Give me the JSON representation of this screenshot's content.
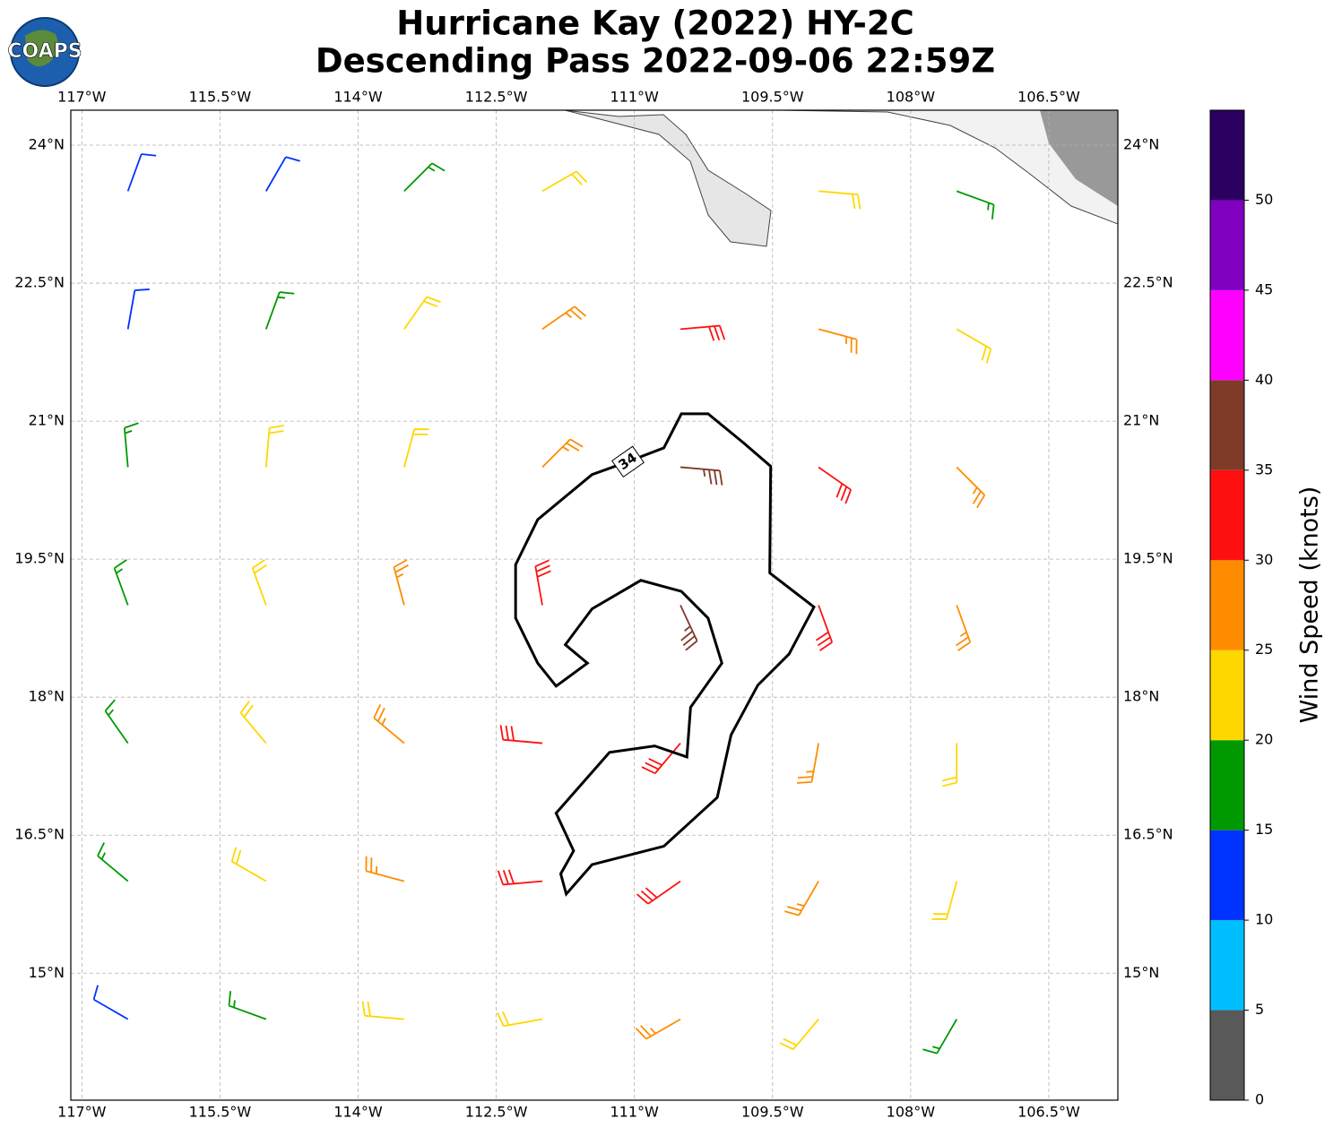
{
  "chart_data": {
    "type": "barbs",
    "title": "Hurricane Kay (2022) HY-2C",
    "subtitle": "Descending Pass 2022-09-06 22:59Z",
    "logo": "COAPS",
    "xlim": [
      -117.12,
      -105.75
    ],
    "ylim": [
      13.62,
      24.38
    ],
    "xticks": [
      {
        "value": -117,
        "label": "117°W"
      },
      {
        "value": -115.5,
        "label": "115.5°W"
      },
      {
        "value": -114,
        "label": "114°W"
      },
      {
        "value": -112.5,
        "label": "112.5°W"
      },
      {
        "value": -111,
        "label": "111°W"
      },
      {
        "value": -109.5,
        "label": "109.5°W"
      },
      {
        "value": -108,
        "label": "108°W"
      },
      {
        "value": -106.5,
        "label": "106.5°W"
      }
    ],
    "yticks": [
      {
        "value": 15,
        "label": "15°N"
      },
      {
        "value": 16.5,
        "label": "16.5°N"
      },
      {
        "value": 18,
        "label": "18°N"
      },
      {
        "value": 19.5,
        "label": "19.5°N"
      },
      {
        "value": 21,
        "label": "21°N"
      },
      {
        "value": 22.5,
        "label": "22.5°N"
      },
      {
        "value": 24,
        "label": "24°N"
      }
    ],
    "grid": true,
    "barbs": {
      "lons": [
        -116.5,
        -115,
        -113.5,
        -112,
        -110.5,
        -109,
        -107.5
      ],
      "lats": [
        23.5,
        22,
        20.5,
        19,
        17.5,
        16,
        14.5
      ],
      "speed": [
        [
          12,
          13,
          17,
          20,
          null,
          22,
          17
        ],
        [
          13,
          16,
          20,
          27,
          32,
          28,
          23
        ],
        [
          17,
          21,
          24,
          29,
          37,
          33,
          27
        ],
        [
          18,
          22,
          26,
          33,
          36,
          32,
          27
        ],
        [
          19,
          23,
          27,
          32,
          34,
          29,
          24
        ],
        [
          18,
          22,
          26,
          31,
          32,
          28,
          23
        ],
        [
          13,
          17,
          21,
          24,
          27,
          24,
          19
        ]
      ],
      "dir": [
        [
          250,
          240,
          225,
          210,
          null,
          175,
          160
        ],
        [
          260,
          250,
          235,
          215,
          185,
          165,
          150
        ],
        [
          275,
          265,
          255,
          225,
          175,
          145,
          135
        ],
        [
          290,
          290,
          285,
          280,
          115,
          110,
          110
        ],
        [
          305,
          310,
          320,
          355,
          50,
          80,
          90
        ],
        [
          320,
          330,
          345,
          5,
          35,
          60,
          75
        ],
        [
          330,
          340,
          355,
          10,
          30,
          50,
          60
        ]
      ]
    },
    "contour": {
      "level": 34,
      "points": [
        [
          -110.49,
          21.08
        ],
        [
          -110.2,
          21.08
        ],
        [
          -109.81,
          20.76
        ],
        [
          -109.52,
          20.51
        ],
        [
          -109.53,
          19.35
        ],
        [
          -109.05,
          18.98
        ],
        [
          -109.32,
          18.47
        ],
        [
          -109.66,
          18.13
        ],
        [
          -109.95,
          17.59
        ],
        [
          -110.1,
          16.91
        ],
        [
          -110.68,
          16.38
        ],
        [
          -111.46,
          16.18
        ],
        [
          -111.74,
          15.86
        ],
        [
          -111.8,
          16.08
        ],
        [
          -111.66,
          16.33
        ],
        [
          -111.85,
          16.74
        ],
        [
          -111.27,
          17.4
        ],
        [
          -110.78,
          17.47
        ],
        [
          -110.43,
          17.35
        ],
        [
          -110.39,
          17.89
        ],
        [
          -110.05,
          18.37
        ],
        [
          -110.2,
          18.86
        ],
        [
          -110.49,
          19.15
        ],
        [
          -110.93,
          19.27
        ],
        [
          -111.46,
          18.96
        ],
        [
          -111.75,
          18.57
        ],
        [
          -111.51,
          18.37
        ],
        [
          -111.85,
          18.12
        ],
        [
          -112.05,
          18.37
        ],
        [
          -112.29,
          18.86
        ],
        [
          -112.29,
          19.44
        ],
        [
          -112.05,
          19.93
        ],
        [
          -111.46,
          20.42
        ],
        [
          -111.07,
          20.56
        ],
        [
          -110.68,
          20.71
        ]
      ]
    },
    "colorbar": {
      "label": "Wind Speed (knots)",
      "boundaries": [
        0,
        5,
        10,
        15,
        20,
        25,
        30,
        35,
        40,
        45,
        50,
        55
      ],
      "colors": [
        "#595959",
        "#00bfff",
        "#0033ff",
        "#009900",
        "#ffd700",
        "#ff8c00",
        "#ff1010",
        "#7f3a28",
        "#ff00ff",
        "#8000c0",
        "#2b0060"
      ],
      "ticks": [
        0,
        5,
        10,
        15,
        20,
        25,
        30,
        35,
        40,
        45,
        50
      ]
    }
  }
}
